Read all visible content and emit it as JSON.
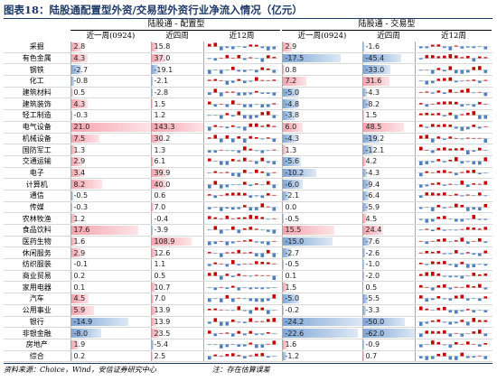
{
  "title": "图表18：陆股通配置型外资/交易型外资行业净流入情况（亿元）",
  "groups": {
    "alloc": "陆股通 - 配置型",
    "trade": "陆股通 - 交易型"
  },
  "columns": {
    "recent": "近一周(0924)",
    "prev4": "近四周",
    "m12": "近12周"
  },
  "colors": {
    "pos": "#f4a4ad",
    "neg": "#7fa6d6",
    "spark_pos": "#c00000",
    "spark_neg": "#4f7fbf"
  },
  "rows": [
    {
      "name": "采掘",
      "a1": "2.8",
      "a4": "15.8",
      "t1": "2.9",
      "t4": "-1.6"
    },
    {
      "name": "有色金属",
      "a1": "4.3",
      "a4": "37.0",
      "t1": "-17.5",
      "t4": "-45.4"
    },
    {
      "name": "钢铁",
      "a1": "-2.7",
      "a4": "-19.1",
      "t1": "0.8",
      "t4": "-33.0"
    },
    {
      "name": "化工",
      "a1": "-0.8",
      "a4": "-2.1",
      "t1": "7.2",
      "t4": "31.6"
    },
    {
      "name": "建筑材料",
      "a1": "0.5",
      "a4": "-2.8",
      "t1": "-5.0",
      "t4": "-4.3"
    },
    {
      "name": "建筑装饰",
      "a1": "4.3",
      "a4": "1.5",
      "t1": "-4.8",
      "t4": "-8.2"
    },
    {
      "name": "轻工制造",
      "a1": "-0.3",
      "a4": "1.2",
      "t1": "-3.8",
      "t4": "1.5"
    },
    {
      "name": "电气设备",
      "a1": "21.0",
      "a4": "143.3",
      "t1": "6.0",
      "t4": "48.5"
    },
    {
      "name": "机械设备",
      "a1": "7.5",
      "a4": "30.2",
      "t1": "-4.3",
      "t4": "-19.2"
    },
    {
      "name": "国防军工",
      "a1": "1.3",
      "a4": "1.3",
      "t1": "1.3",
      "t4": "-12.1"
    },
    {
      "name": "交通运输",
      "a1": "2.9",
      "a4": "6.1",
      "t1": "-5.6",
      "t4": "4.2"
    },
    {
      "name": "电子",
      "a1": "3.4",
      "a4": "39.9",
      "t1": "-10.2",
      "t4": "-4.3"
    },
    {
      "name": "计算机",
      "a1": "8.2",
      "a4": "40.0",
      "t1": "-6.0",
      "t4": "-9.4"
    },
    {
      "name": "通信",
      "a1": "-0.5",
      "a4": "0.6",
      "t1": "-2.1",
      "t4": "-6.4"
    },
    {
      "name": "传媒",
      "a1": "-0.3",
      "a4": "7.0",
      "t1": "0.0",
      "t4": "-5.9"
    },
    {
      "name": "农林牧渔",
      "a1": "1.2",
      "a4": "-0.4",
      "t1": "-0.5",
      "t4": "4.5"
    },
    {
      "name": "食品饮料",
      "a1": "17.6",
      "a4": "-3.9",
      "t1": "15.5",
      "t4": "24.4"
    },
    {
      "name": "医药生物",
      "a1": "1.6",
      "a4": "108.9",
      "t1": "-15.0",
      "t4": "-7.6"
    },
    {
      "name": "休闲服务",
      "a1": "2.9",
      "a4": "12.6",
      "t1": "-2.7",
      "t4": "-2.6"
    },
    {
      "name": "纺织服装",
      "a1": "-0.1",
      "a4": "1.1",
      "t1": "-0.5",
      "t4": "-1.0"
    },
    {
      "name": "商业贸易",
      "a1": "0.2",
      "a4": "0.5",
      "t1": "0.1",
      "t4": "-2.0"
    },
    {
      "name": "家用电器",
      "a1": "0.1",
      "a4": "10.7",
      "t1": "1.5",
      "t4": "0.5"
    },
    {
      "name": "汽车",
      "a1": "4.5",
      "a4": "7.0",
      "t1": "-5.0",
      "t4": "-5.5"
    },
    {
      "name": "公用事业",
      "a1": "5.9",
      "a4": "13.9",
      "t1": "-0.2",
      "t4": "-3.3"
    },
    {
      "name": "银行",
      "a1": "-14.9",
      "a4": "13.9",
      "t1": "-24.2",
      "t4": "-50.0"
    },
    {
      "name": "非银金融",
      "a1": "-8.0",
      "a4": "23.5",
      "t1": "-22.6",
      "t4": "-62.0"
    },
    {
      "name": "房地产",
      "a1": "1.9",
      "a4": "-5.4",
      "t1": "1.6",
      "t4": "-0.9"
    },
    {
      "name": "综合",
      "a1": "0.2",
      "a4": "2.5",
      "t1": "-1.2",
      "t4": "0.7"
    }
  ],
  "footer": {
    "source": "资料来源：Choice，Wind，安信证券研究中心",
    "note": "注：存在估算误差"
  }
}
